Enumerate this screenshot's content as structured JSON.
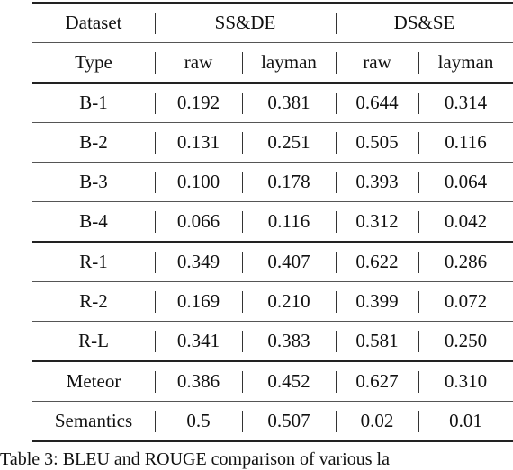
{
  "table": {
    "header": {
      "dataset_label": "Dataset",
      "group1": "SS&DE",
      "group2": "DS&SE",
      "type_label": "Type",
      "sub1": "raw",
      "sub2": "layman",
      "sub3": "raw",
      "sub4": "layman"
    },
    "rows": [
      {
        "metric": "B-1",
        "v": [
          "0.192",
          "0.381",
          "0.644",
          "0.314"
        ]
      },
      {
        "metric": "B-2",
        "v": [
          "0.131",
          "0.251",
          "0.505",
          "0.116"
        ]
      },
      {
        "metric": "B-3",
        "v": [
          "0.100",
          "0.178",
          "0.393",
          "0.064"
        ]
      },
      {
        "metric": "B-4",
        "v": [
          "0.066",
          "0.116",
          "0.312",
          "0.042"
        ]
      },
      {
        "metric": "R-1",
        "v": [
          "0.349",
          "0.407",
          "0.622",
          "0.286"
        ]
      },
      {
        "metric": "R-2",
        "v": [
          "0.169",
          "0.210",
          "0.399",
          "0.072"
        ]
      },
      {
        "metric": "R-L",
        "v": [
          "0.341",
          "0.383",
          "0.581",
          "0.250"
        ]
      },
      {
        "metric": "Meteor",
        "v": [
          "0.386",
          "0.452",
          "0.627",
          "0.310"
        ]
      },
      {
        "metric": "Semantics",
        "v": [
          "0.5",
          "0.507",
          "0.02",
          "0.01"
        ]
      }
    ]
  },
  "caption": "Table 3: BLEU and ROUGE comparison of various la"
}
